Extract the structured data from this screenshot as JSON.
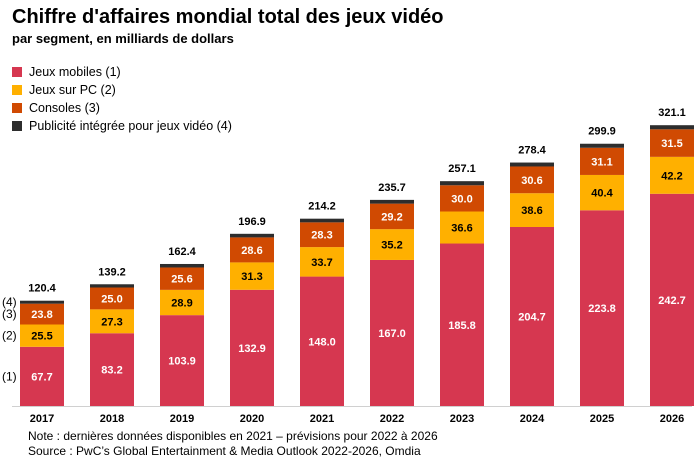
{
  "chart_data": {
    "type": "bar",
    "stacked": true,
    "title": "Chiffre d'affaires mondial total des jeux vidéo",
    "subtitle": "par segment, en milliards de dollars",
    "categories": [
      "2017",
      "2018",
      "2019",
      "2020",
      "2021",
      "2022",
      "2023",
      "2024",
      "2025",
      "2026"
    ],
    "series": [
      {
        "name": "Jeux mobiles (1)",
        "short": "(1)",
        "color": "#d63750",
        "values": [
          67.7,
          83.2,
          103.9,
          132.9,
          148.0,
          167.0,
          185.8,
          204.7,
          223.8,
          242.7
        ]
      },
      {
        "name": "Jeux sur PC (2)",
        "short": "(2)",
        "color": "#ffb000",
        "values": [
          25.5,
          27.3,
          28.9,
          31.3,
          33.7,
          35.2,
          36.6,
          38.6,
          40.4,
          42.2
        ]
      },
      {
        "name": "Consoles (3)",
        "short": "(3)",
        "color": "#d04a02",
        "values": [
          23.8,
          25.0,
          25.6,
          28.6,
          28.3,
          29.2,
          30.0,
          30.6,
          31.1,
          31.5
        ]
      },
      {
        "name": "Publicité intégrée pour jeux vidéo (4)",
        "short": "(4)",
        "color": "#2d2d2d",
        "values": [
          3.4,
          3.7,
          4.0,
          4.1,
          4.2,
          4.3,
          4.7,
          4.5,
          4.6,
          4.7
        ]
      }
    ],
    "totals": [
      120.4,
      139.2,
      162.4,
      196.9,
      214.2,
      235.7,
      257.1,
      278.4,
      299.9,
      321.1
    ],
    "legend": "top-left",
    "grid": false
  },
  "notes": [
    "Note : dernières données disponibles en 2021 – prévisions pour 2022 à 2026",
    "Source : PwC’s Global Entertainment & Media Outlook 2022-2026, Omdia"
  ]
}
